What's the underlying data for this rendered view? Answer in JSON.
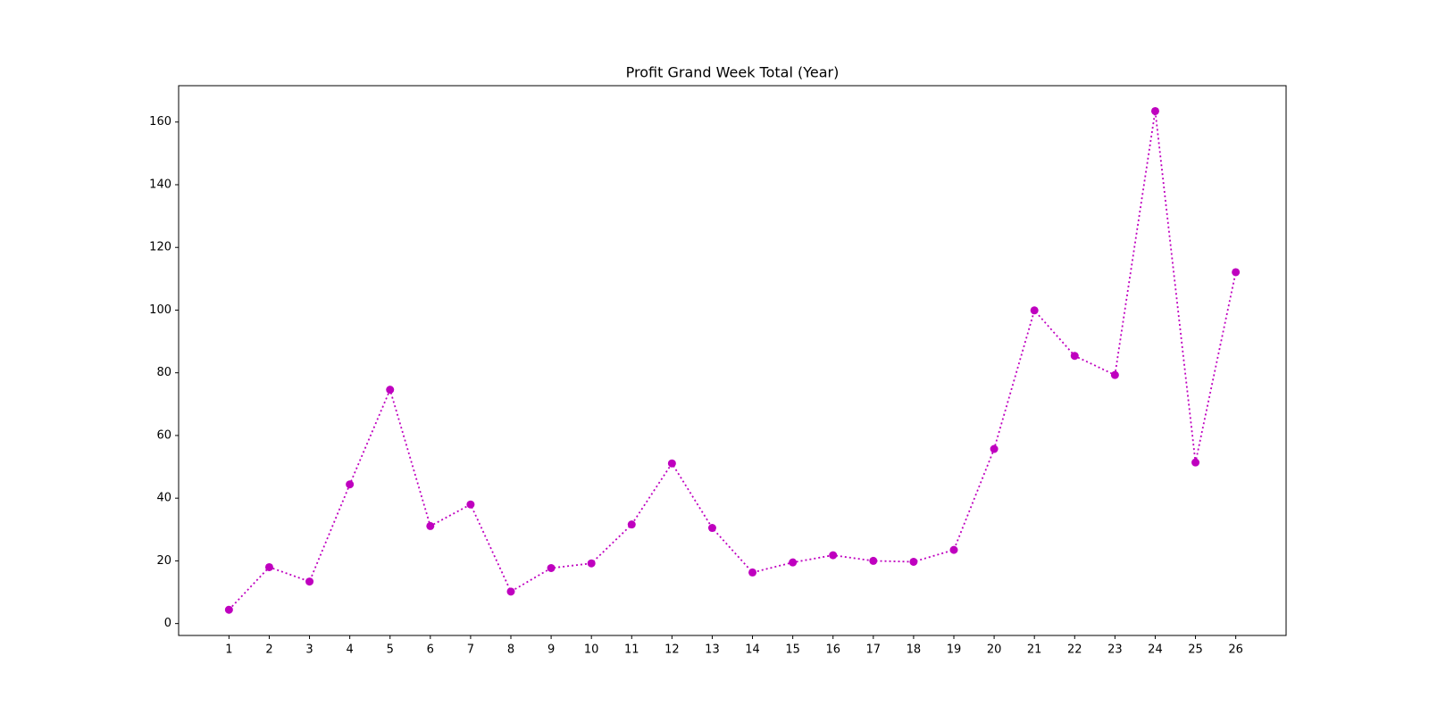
{
  "chart_data": {
    "type": "line",
    "title": "Profit Grand Week Total (Year)",
    "x": [
      1,
      2,
      3,
      4,
      5,
      6,
      7,
      8,
      9,
      10,
      11,
      12,
      13,
      14,
      15,
      16,
      17,
      18,
      19,
      20,
      21,
      22,
      23,
      24,
      25,
      26
    ],
    "series": [
      {
        "color": "#bf00bf",
        "values": [
          4.4,
          18.0,
          13.4,
          44.4,
          74.6,
          31.1,
          38.0,
          10.2,
          17.7,
          19.2,
          31.6,
          51.1,
          30.5,
          16.3,
          19.5,
          21.8,
          20.0,
          19.7,
          23.5,
          55.7,
          99.9,
          85.4,
          79.3,
          163.5,
          51.4,
          112.1
        ]
      }
    ],
    "xlim": [
      -0.25,
      27.25
    ],
    "xticks": [
      1,
      2,
      3,
      4,
      5,
      6,
      7,
      8,
      9,
      10,
      11,
      12,
      13,
      14,
      15,
      16,
      17,
      18,
      19,
      20,
      21,
      22,
      23,
      24,
      25,
      26
    ],
    "ylim": [
      -3.8,
      171.6
    ],
    "yticks": [
      0,
      20,
      40,
      60,
      80,
      100,
      120,
      140,
      160
    ],
    "grid": false,
    "line_style": "dotted",
    "marker": "circle"
  }
}
